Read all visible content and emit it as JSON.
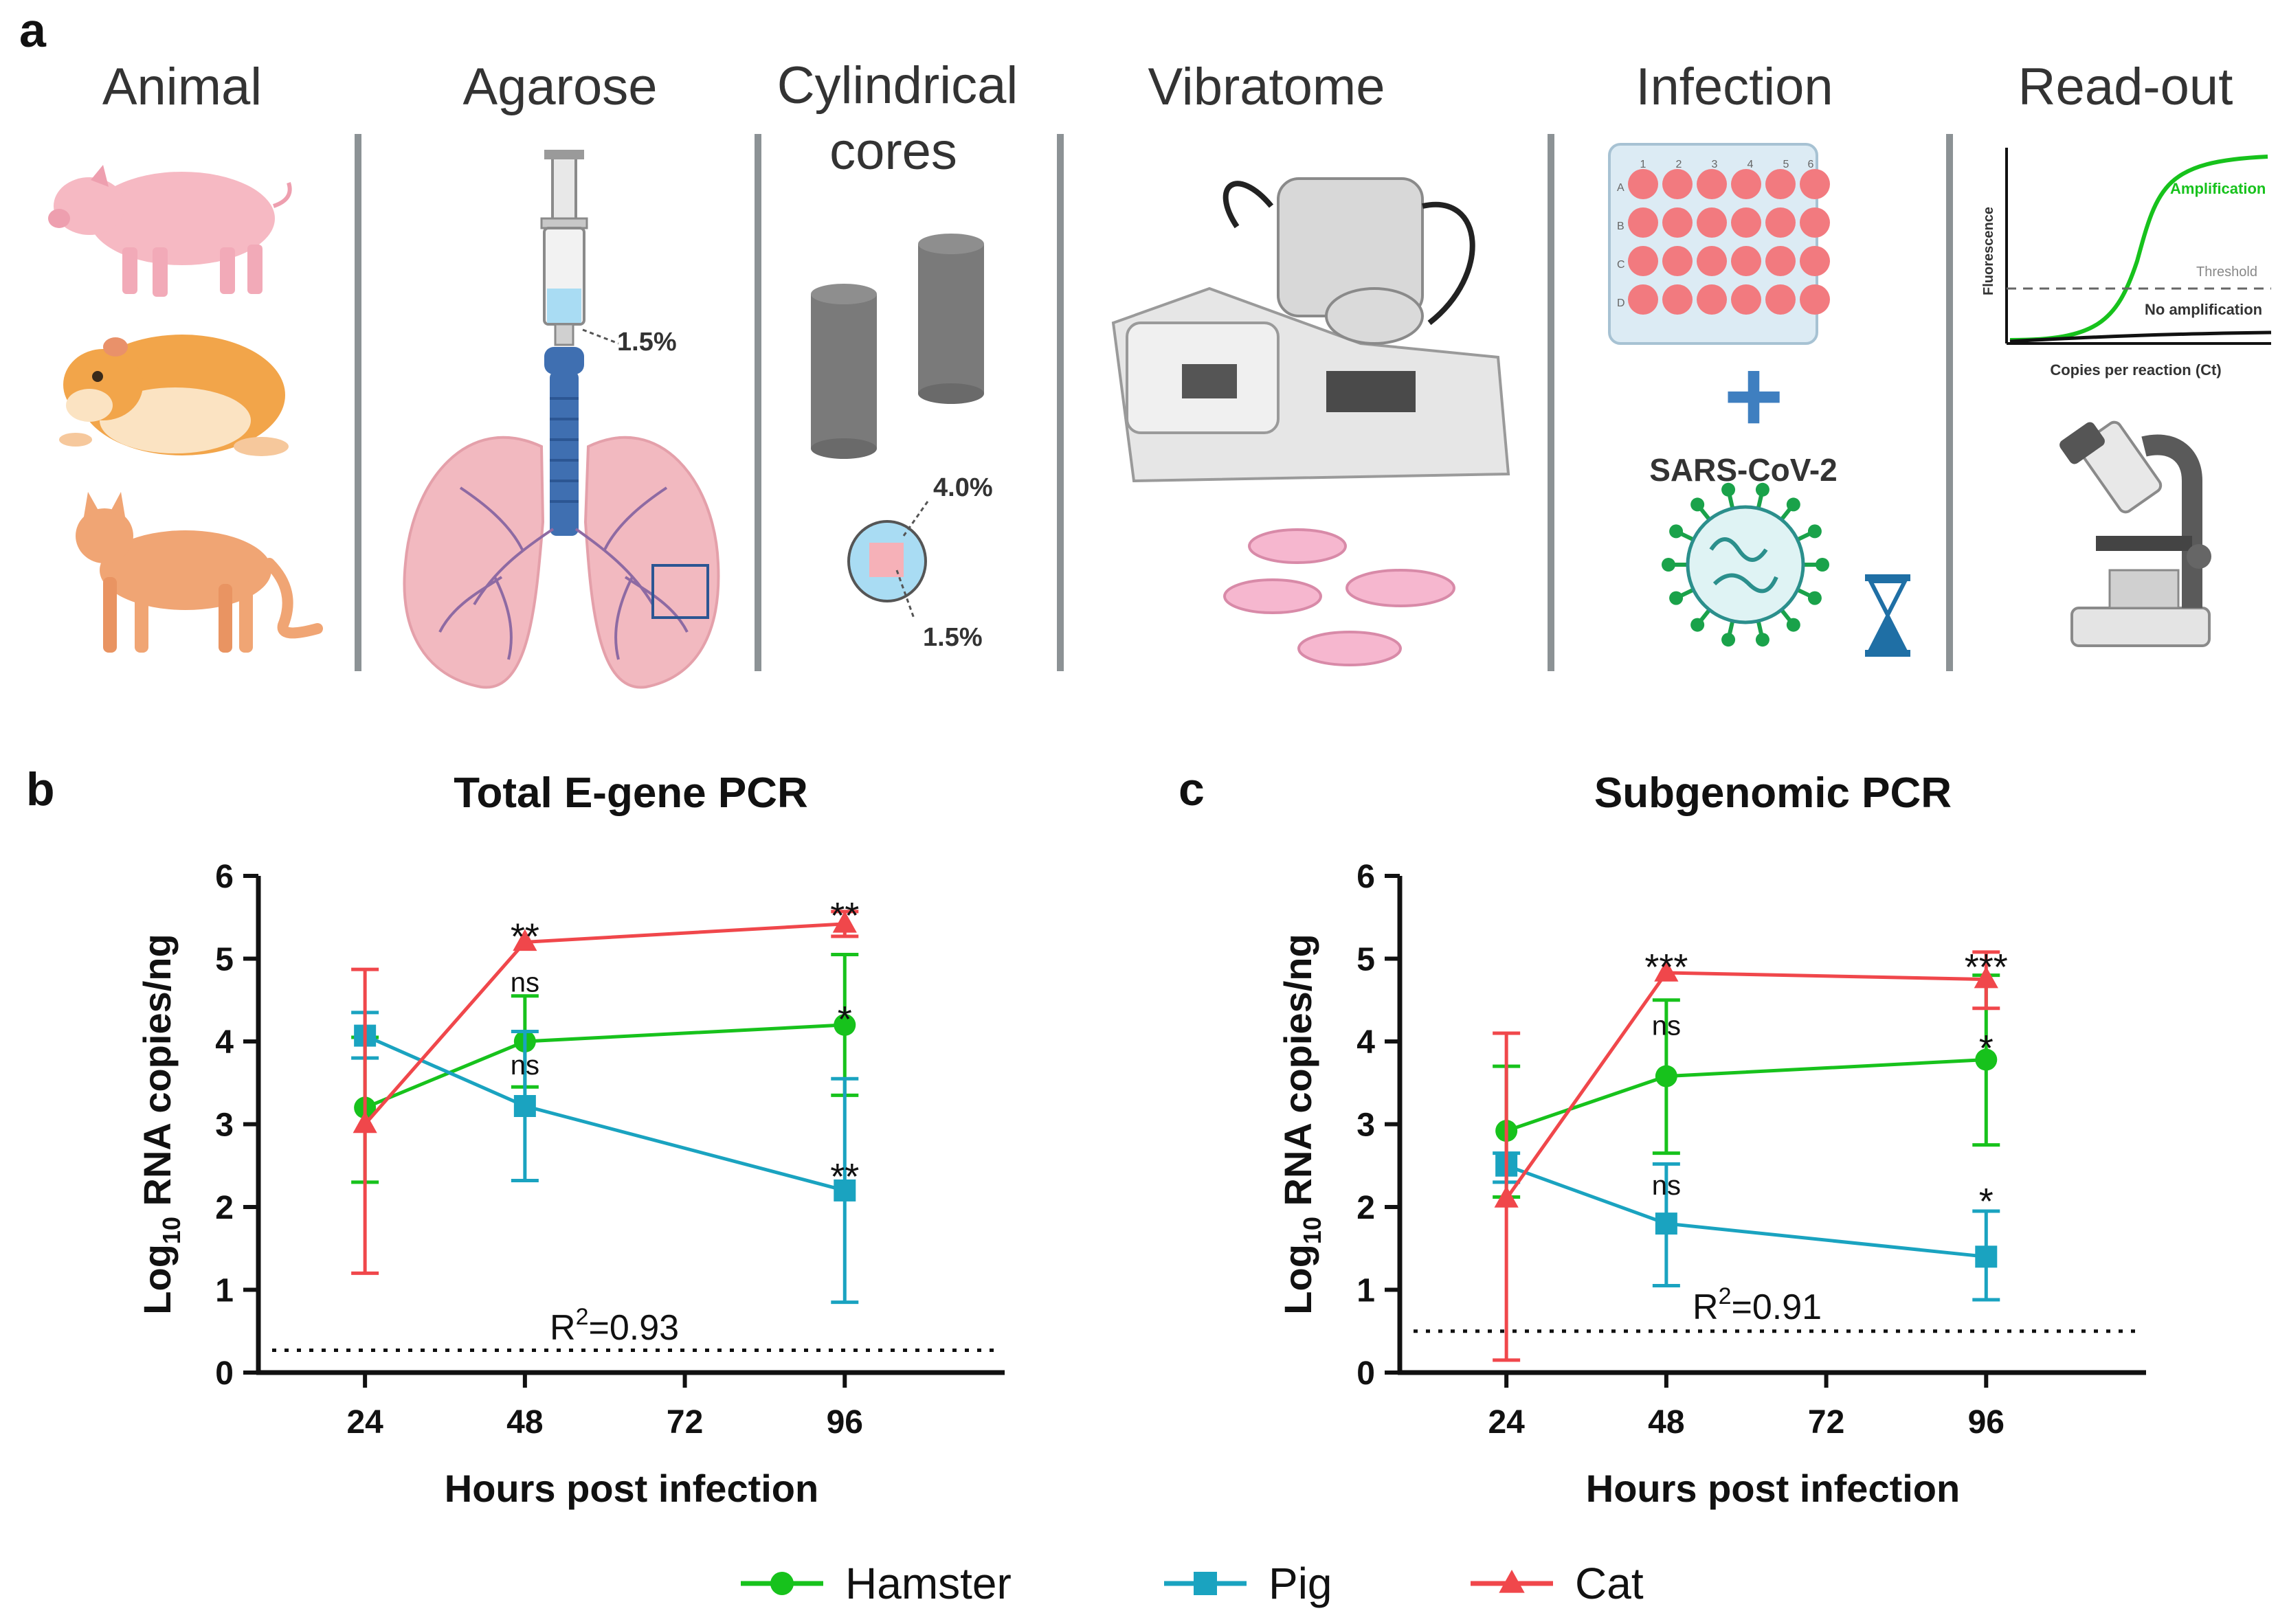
{
  "colors": {
    "hamster": "#17c21c",
    "pig": "#1aa3c0",
    "cat": "#f0474b",
    "divider": "#8c9295"
  },
  "panel_a": {
    "letter": "a",
    "steps": [
      {
        "title": "Animal",
        "title2": ""
      },
      {
        "title": "Agarose",
        "title2": ""
      },
      {
        "title": "Cylindrical",
        "title2": "cores"
      },
      {
        "title": "Vibratome",
        "title2": ""
      },
      {
        "title": "Infection",
        "title2": ""
      },
      {
        "title": "Read-out",
        "title2": ""
      }
    ],
    "agarose_pct": "1.5%",
    "core_outer_pct": "4.0%",
    "core_inner_pct": "1.5%",
    "plate_cols": [
      "1",
      "2",
      "3",
      "4",
      "5",
      "6"
    ],
    "plate_rows": [
      "A",
      "B",
      "C",
      "D"
    ],
    "plus_symbol": "+",
    "virus_label": "SARS-CoV-2",
    "readout": {
      "ylabel": "Fluorescence",
      "xlabel": "Copies per reaction (Ct)",
      "amplification": "Amplification",
      "threshold": "Threshold",
      "no_amplification": "No amplification"
    }
  },
  "chart_data": [
    {
      "panel": "b",
      "type": "line",
      "title": "Total E-gene PCR",
      "xlabel": "Hours post infection",
      "ylabel_prefix": "Log",
      "ylabel_sub": "10",
      "ylabel_suffix": " RNA copies/ng",
      "x_ticks": [
        "24",
        "48",
        "72",
        "96"
      ],
      "y_ticks": [
        "0",
        "1",
        "2",
        "3",
        "4",
        "5",
        "6"
      ],
      "xlim": [
        8,
        120
      ],
      "ylim": [
        0,
        6
      ],
      "detection_limit": 0.27,
      "r2_prefix": "R",
      "r2_sup": "2",
      "r2_value": "=0.93",
      "series": [
        {
          "name": "Hamster",
          "color": "#17c21c",
          "marker": "circle",
          "x": [
            24,
            48,
            96
          ],
          "y": [
            3.2,
            4.0,
            4.2
          ],
          "err_low": [
            2.3,
            3.45,
            3.35
          ],
          "err_high": [
            4.05,
            4.55,
            5.05
          ]
        },
        {
          "name": "Pig",
          "color": "#1aa3c0",
          "marker": "square",
          "x": [
            24,
            48,
            96
          ],
          "y": [
            4.07,
            3.22,
            2.2
          ],
          "err_low": [
            3.8,
            2.32,
            0.85
          ],
          "err_high": [
            4.35,
            4.12,
            3.55
          ]
        },
        {
          "name": "Cat",
          "color": "#f0474b",
          "marker": "triangle",
          "x": [
            24,
            48,
            96
          ],
          "y": [
            3.0,
            5.2,
            5.42
          ],
          "err_low": [
            1.2,
            5.2,
            5.27
          ],
          "err_high": [
            4.87,
            5.2,
            5.57
          ]
        }
      ],
      "annotations": [
        {
          "text": "**",
          "x": 48,
          "y": 5.35
        },
        {
          "text": "ns",
          "x": 48,
          "y": 4.6
        },
        {
          "text": "ns",
          "x": 48,
          "y": 3.6
        },
        {
          "text": "**",
          "x": 96,
          "y": 5.6
        },
        {
          "text": "*",
          "x": 96,
          "y": 4.35
        },
        {
          "text": "**",
          "x": 96,
          "y": 2.45
        }
      ]
    },
    {
      "panel": "c",
      "type": "line",
      "title": "Subgenomic PCR",
      "xlabel": "Hours post infection",
      "ylabel_prefix": "Log",
      "ylabel_sub": "10",
      "ylabel_suffix": " RNA copies/ng",
      "x_ticks": [
        "24",
        "48",
        "72",
        "96"
      ],
      "y_ticks": [
        "0",
        "1",
        "2",
        "3",
        "4",
        "5",
        "6"
      ],
      "xlim": [
        8,
        120
      ],
      "ylim": [
        0,
        6
      ],
      "detection_limit": 0.5,
      "r2_prefix": "R",
      "r2_sup": "2",
      "r2_value": "=0.91",
      "series": [
        {
          "name": "Hamster",
          "color": "#17c21c",
          "marker": "circle",
          "x": [
            24,
            48,
            96
          ],
          "y": [
            2.92,
            3.58,
            3.78
          ],
          "err_low": [
            2.12,
            2.65,
            2.75
          ],
          "err_high": [
            3.7,
            4.5,
            4.8
          ]
        },
        {
          "name": "Pig",
          "color": "#1aa3c0",
          "marker": "square",
          "x": [
            24,
            48,
            96
          ],
          "y": [
            2.5,
            1.8,
            1.4
          ],
          "err_low": [
            2.3,
            1.05,
            0.88
          ],
          "err_high": [
            2.65,
            2.52,
            1.95
          ]
        },
        {
          "name": "Cat",
          "color": "#f0474b",
          "marker": "triangle",
          "x": [
            24,
            48,
            96
          ],
          "y": [
            2.1,
            4.83,
            4.75
          ],
          "err_low": [
            0.15,
            4.83,
            4.4
          ],
          "err_high": [
            4.1,
            4.83,
            5.08
          ]
        }
      ],
      "annotations": [
        {
          "text": "***",
          "x": 48,
          "y": 4.98
        },
        {
          "text": "ns",
          "x": 48,
          "y": 4.08
        },
        {
          "text": "ns",
          "x": 48,
          "y": 2.15
        },
        {
          "text": "***",
          "x": 96,
          "y": 4.98
        },
        {
          "text": "*",
          "x": 96,
          "y": 4.0
        },
        {
          "text": "*",
          "x": 96,
          "y": 2.15
        }
      ]
    }
  ],
  "legend": [
    {
      "name": "Hamster",
      "color": "#17c21c",
      "marker": "circle"
    },
    {
      "name": "Pig",
      "color": "#1aa3c0",
      "marker": "square"
    },
    {
      "name": "Cat",
      "color": "#f0474b",
      "marker": "triangle"
    }
  ]
}
